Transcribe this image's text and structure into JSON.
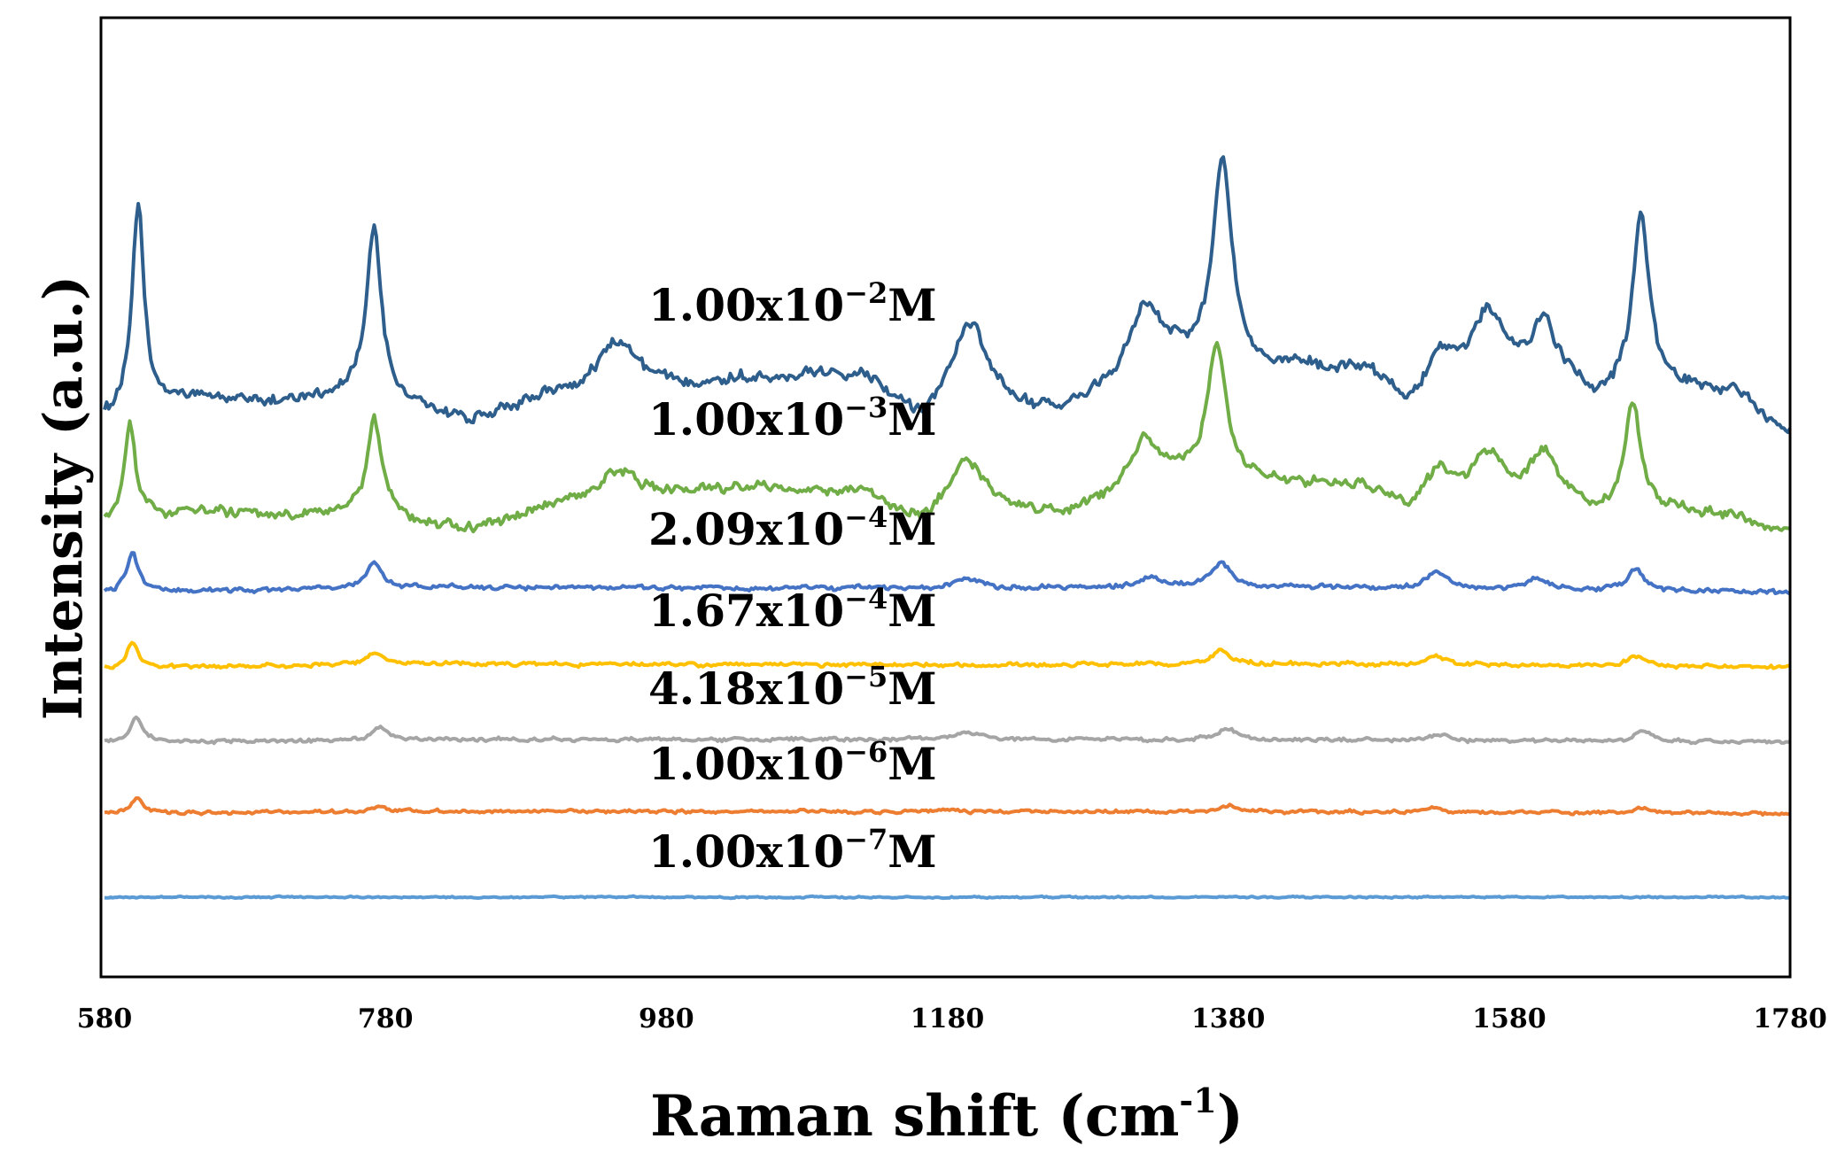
{
  "chart_data": {
    "type": "line",
    "title": "",
    "xlabel": "Raman shift (cm",
    "xlabel_superscript": "-1",
    "xlabel_suffix": ")",
    "ylabel": "Intensity (a.u.)",
    "xlim": [
      580,
      1780
    ],
    "ylim": [
      0,
      100
    ],
    "x_ticks": [
      580,
      780,
      980,
      1180,
      1380,
      1580,
      1780
    ],
    "grid": false,
    "y_tick_labels": false,
    "series": [
      {
        "name": "1.00x10⁻²M",
        "label_base": "1.00x10",
        "label_exp": "−2",
        "label_unit": "M",
        "color": "#2E5E8C",
        "baseline": 59.5,
        "noise": 0.9,
        "background": [
          [
            580,
            58.5
          ],
          [
            640,
            60.5
          ],
          [
            700,
            60
          ],
          [
            760,
            61
          ],
          [
            840,
            58
          ],
          [
            900,
            60.5
          ],
          [
            960,
            61
          ],
          [
            1040,
            62.5
          ],
          [
            1120,
            63
          ],
          [
            1160,
            58
          ],
          [
            1200,
            60
          ],
          [
            1260,
            58.5
          ],
          [
            1300,
            61.5
          ],
          [
            1340,
            64
          ],
          [
            1430,
            63.5
          ],
          [
            1480,
            63
          ],
          [
            1510,
            59
          ],
          [
            1560,
            62
          ],
          [
            1610,
            63
          ],
          [
            1640,
            60.5
          ],
          [
            1700,
            61.5
          ],
          [
            1740,
            61
          ],
          [
            1780,
            56.5
          ]
        ],
        "peaks": [
          {
            "x": 604,
            "h": 21.5,
            "w": 5
          },
          {
            "x": 772,
            "h": 18,
            "w": 6
          },
          {
            "x": 945,
            "h": 5.5,
            "w": 18
          },
          {
            "x": 1195,
            "h": 8.5,
            "w": 14
          },
          {
            "x": 1322,
            "h": 7,
            "w": 14
          },
          {
            "x": 1376,
            "h": 21.5,
            "w": 8
          },
          {
            "x": 1530,
            "h": 4,
            "w": 12
          },
          {
            "x": 1565,
            "h": 7,
            "w": 14
          },
          {
            "x": 1604,
            "h": 5,
            "w": 10
          },
          {
            "x": 1674,
            "h": 19,
            "w": 7
          }
        ]
      },
      {
        "name": "1.00x10⁻³M",
        "label_base": "1.00x10",
        "label_exp": "−3",
        "label_unit": "M",
        "color": "#70AD47",
        "baseline": 48.5,
        "noise": 0.8,
        "background": [
          [
            580,
            47
          ],
          [
            640,
            48.5
          ],
          [
            700,
            48
          ],
          [
            760,
            48.5
          ],
          [
            840,
            46.5
          ],
          [
            900,
            49
          ],
          [
            960,
            50
          ],
          [
            1040,
            51
          ],
          [
            1120,
            50.5
          ],
          [
            1160,
            47.5
          ],
          [
            1200,
            50
          ],
          [
            1260,
            48
          ],
          [
            1300,
            50
          ],
          [
            1340,
            52
          ],
          [
            1430,
            51.5
          ],
          [
            1480,
            51
          ],
          [
            1510,
            48
          ],
          [
            1560,
            50
          ],
          [
            1610,
            50.5
          ],
          [
            1640,
            48.5
          ],
          [
            1700,
            48.5
          ],
          [
            1740,
            48
          ],
          [
            1780,
            46.5
          ]
        ],
        "peaks": [
          {
            "x": 598,
            "h": 10,
            "w": 5
          },
          {
            "x": 772,
            "h": 10,
            "w": 6
          },
          {
            "x": 945,
            "h": 3,
            "w": 18
          },
          {
            "x": 1192,
            "h": 4.5,
            "w": 12
          },
          {
            "x": 1320,
            "h": 5,
            "w": 12
          },
          {
            "x": 1372,
            "h": 14,
            "w": 8
          },
          {
            "x": 1530,
            "h": 4,
            "w": 12
          },
          {
            "x": 1565,
            "h": 4.5,
            "w": 12
          },
          {
            "x": 1604,
            "h": 4,
            "w": 10
          },
          {
            "x": 1668,
            "h": 11,
            "w": 7
          }
        ]
      },
      {
        "name": "2.09x10⁻⁴M",
        "label_base": "2.09x10",
        "label_exp": "−4",
        "label_unit": "M",
        "color": "#4472C4",
        "baseline": 40.5,
        "noise": 0.35,
        "background": [
          [
            580,
            40
          ],
          [
            780,
            40.6
          ],
          [
            1180,
            40.4
          ],
          [
            1380,
            40.6
          ],
          [
            1780,
            40
          ]
        ],
        "peaks": [
          {
            "x": 600,
            "h": 4,
            "w": 5
          },
          {
            "x": 772,
            "h": 2.5,
            "w": 6
          },
          {
            "x": 1195,
            "h": 1,
            "w": 10
          },
          {
            "x": 1325,
            "h": 1,
            "w": 10
          },
          {
            "x": 1375,
            "h": 2.5,
            "w": 8
          },
          {
            "x": 1528,
            "h": 1.8,
            "w": 9
          },
          {
            "x": 1600,
            "h": 1.2,
            "w": 9
          },
          {
            "x": 1670,
            "h": 2.2,
            "w": 7
          }
        ]
      },
      {
        "name": "1.67x10⁻⁴M",
        "label_base": "1.67x10",
        "label_exp": "−4",
        "label_unit": "M",
        "color": "#FFC000",
        "baseline": 32.3,
        "noise": 0.3,
        "background": [
          [
            580,
            32
          ],
          [
            780,
            32.5
          ],
          [
            1180,
            32.4
          ],
          [
            1380,
            32.5
          ],
          [
            1780,
            32.2
          ]
        ],
        "peaks": [
          {
            "x": 600,
            "h": 2.8,
            "w": 5
          },
          {
            "x": 772,
            "h": 1.2,
            "w": 6
          },
          {
            "x": 1375,
            "h": 1.4,
            "w": 7
          },
          {
            "x": 1528,
            "h": 0.9,
            "w": 8
          },
          {
            "x": 1670,
            "h": 1.1,
            "w": 7
          }
        ]
      },
      {
        "name": "4.18x10⁻⁵M",
        "label_base": "4.18x10",
        "label_exp": "−5",
        "label_unit": "M",
        "color": "#A5A5A5",
        "baseline": 24.5,
        "noise": 0.3,
        "background": [
          [
            580,
            24.3
          ],
          [
            780,
            24.5
          ],
          [
            1180,
            24.6
          ],
          [
            1380,
            24.5
          ],
          [
            1780,
            24.3
          ]
        ],
        "peaks": [
          {
            "x": 603,
            "h": 2.6,
            "w": 5
          },
          {
            "x": 777,
            "h": 1.4,
            "w": 6
          },
          {
            "x": 1195,
            "h": 0.8,
            "w": 10
          },
          {
            "x": 1380,
            "h": 1.2,
            "w": 8
          },
          {
            "x": 1530,
            "h": 0.6,
            "w": 8
          },
          {
            "x": 1675,
            "h": 1.1,
            "w": 7
          }
        ]
      },
      {
        "name": "1.00x10⁻⁶M",
        "label_base": "1.00x10",
        "label_exp": "−6",
        "label_unit": "M",
        "color": "#ED7D31",
        "baseline": 17,
        "noise": 0.25,
        "background": [
          [
            580,
            16.8
          ],
          [
            780,
            17
          ],
          [
            1180,
            17
          ],
          [
            1380,
            17
          ],
          [
            1780,
            16.8
          ]
        ],
        "peaks": [
          {
            "x": 603,
            "h": 1.5,
            "w": 5
          },
          {
            "x": 777,
            "h": 0.6,
            "w": 6
          },
          {
            "x": 1380,
            "h": 0.6,
            "w": 7
          },
          {
            "x": 1528,
            "h": 0.4,
            "w": 8
          },
          {
            "x": 1675,
            "h": 0.5,
            "w": 7
          }
        ]
      },
      {
        "name": "1.00x10⁻⁷M",
        "label_base": "1.00x10",
        "label_exp": "−7",
        "label_unit": "M",
        "color": "#5B9BD5",
        "baseline": 8,
        "noise": 0.12,
        "background": [
          [
            580,
            8
          ],
          [
            1780,
            8
          ]
        ],
        "peaks": []
      }
    ]
  }
}
